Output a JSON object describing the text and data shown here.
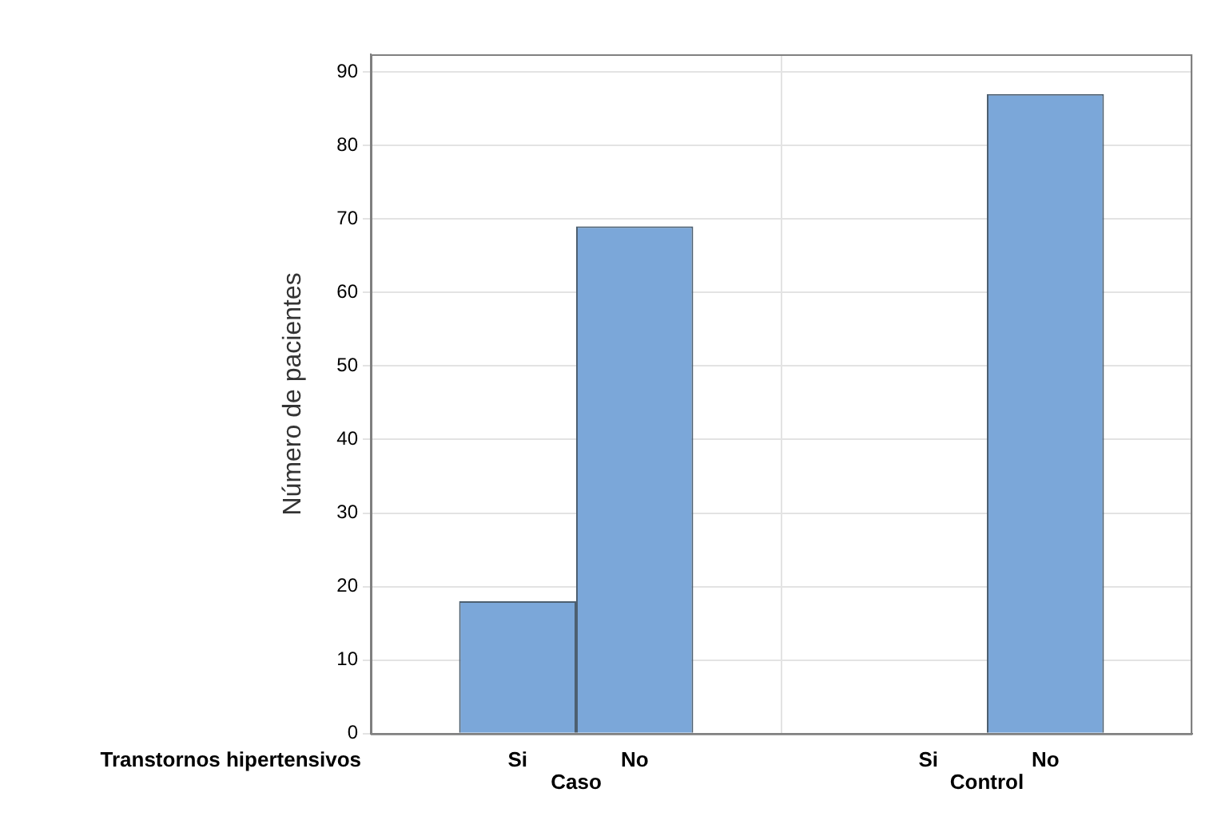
{
  "chart_data": {
    "type": "bar",
    "ylabel": "Número de pacientes",
    "xlabel": "Transtornos hipertensivos",
    "categories": [
      "Caso",
      "Control"
    ],
    "series": [
      {
        "name": "Si",
        "color": "#7ba7d9",
        "values": [
          18,
          0
        ]
      },
      {
        "name": "No",
        "color": "#7ba7d9",
        "values": [
          69,
          87
        ]
      }
    ],
    "ylim": [
      0,
      92.4
    ],
    "yticks": [
      0,
      10,
      20,
      30,
      40,
      50,
      60,
      70,
      80,
      90
    ],
    "grid": true
  }
}
